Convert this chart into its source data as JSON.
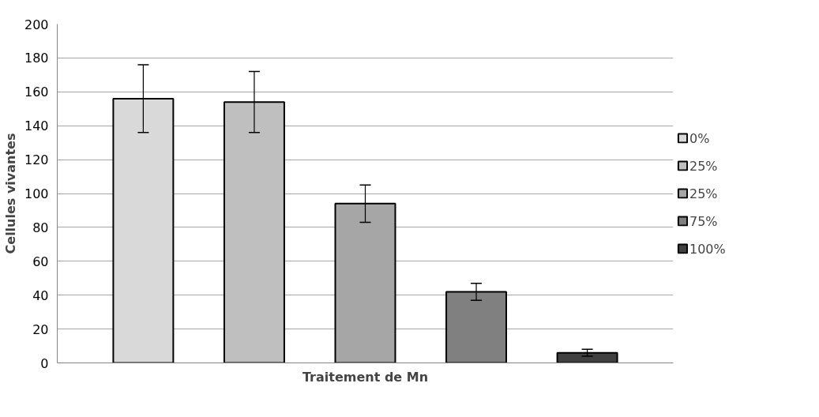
{
  "chart_data": {
    "type": "bar",
    "xlabel": "Traitement de Mn",
    "ylabel": "Cellules vivantes",
    "categories": [
      null
    ],
    "series": [
      {
        "name": "0%",
        "color": "#d9d9d9",
        "values": [
          156
        ],
        "errors": [
          20
        ]
      },
      {
        "name": "25%",
        "color": "#bfbfbf",
        "values": [
          154
        ],
        "errors": [
          [
            136,
            172
          ]
        ]
      },
      {
        "name": "25%",
        "color": "#a6a6a6",
        "values": [
          94
        ],
        "errors": [
          [
            83,
            105
          ]
        ]
      },
      {
        "name": "75%",
        "color": "#808080",
        "values": [
          42
        ],
        "errors": [
          [
            37,
            47
          ]
        ]
      },
      {
        "name": "100%",
        "color": "#404040",
        "values": [
          6
        ],
        "errors": [
          [
            4,
            8
          ]
        ]
      }
    ],
    "ylim": [
      0,
      200
    ],
    "yticks": [
      0,
      20,
      40,
      60,
      80,
      100,
      120,
      140,
      160,
      180,
      200
    ],
    "grid": "y",
    "legend": "right"
  }
}
